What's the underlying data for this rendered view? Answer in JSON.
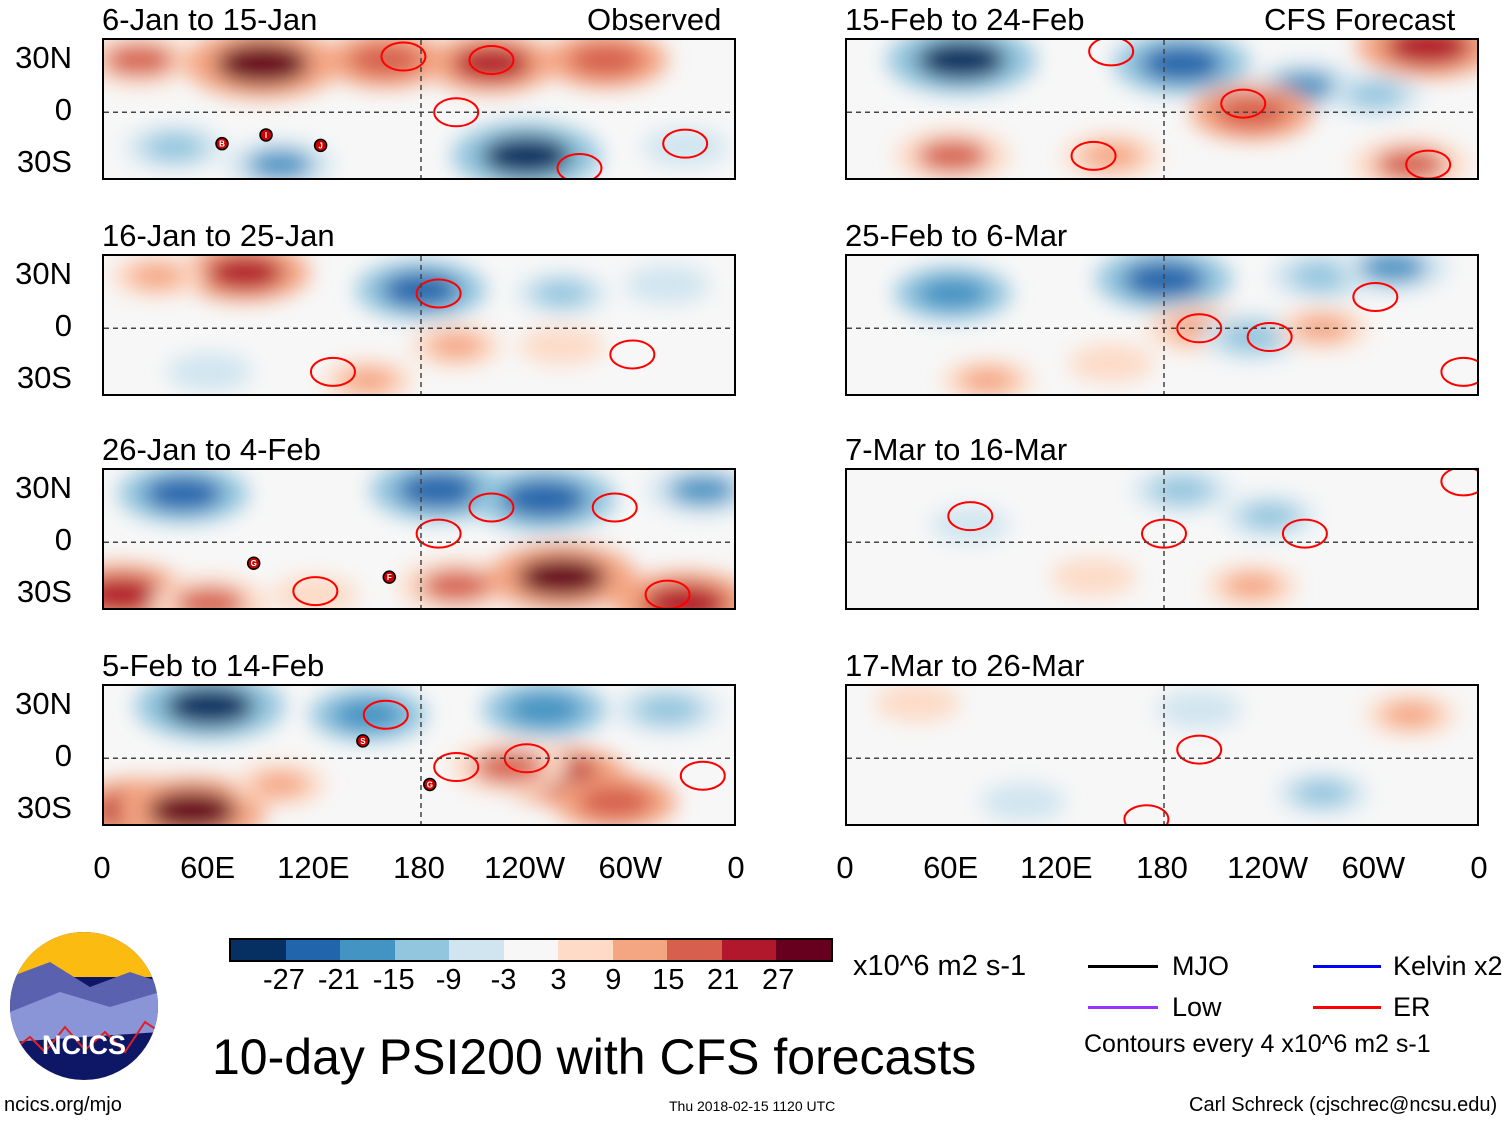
{
  "header": {
    "observed_label": "Observed",
    "forecast_label": "CFS Forecast"
  },
  "chart_data": {
    "type": "heatmap",
    "title": "10-day PSI200 with CFS forecasts",
    "units": "x10^6 m2 s-1",
    "contour_note": "Contours every 4 x10^6 m2 s-1",
    "lat_ticks": [
      "30N",
      "0",
      "30S"
    ],
    "lon_ticks": [
      "0",
      "60E",
      "120E",
      "180",
      "120W",
      "60W",
      "0"
    ],
    "lon_tick_values": [
      0,
      60,
      120,
      180,
      240,
      300,
      360
    ],
    "lat_range": [
      -40,
      41.5
    ],
    "colorbar": {
      "levels": [
        "-27",
        "-21",
        "-15",
        "-9",
        "-3",
        "3",
        "9",
        "15",
        "21",
        "27"
      ],
      "colors": [
        "#053061",
        "#2166ac",
        "#4393c3",
        "#92c5de",
        "#d1e5f0",
        "#f7f7f7",
        "#fddbc7",
        "#f4a582",
        "#d6604d",
        "#b2182b",
        "#67001f"
      ]
    },
    "legend": [
      {
        "label": "MJO",
        "color": "#000000"
      },
      {
        "label": "Kelvin x2",
        "color": "#0000ff"
      },
      {
        "label": "Low",
        "color": "#9933ff"
      },
      {
        "label": "ER",
        "color": "#ff0000"
      }
    ],
    "panels": [
      {
        "title": "6-Jan to 15-Jan",
        "column": "observed",
        "anoms": [
          [
            20,
            30,
            18
          ],
          [
            90,
            28,
            30
          ],
          [
            160,
            30,
            20
          ],
          [
            220,
            28,
            22
          ],
          [
            285,
            30,
            20
          ],
          [
            40,
            -20,
            -12
          ],
          [
            100,
            -30,
            -15
          ],
          [
            240,
            -25,
            -28
          ],
          [
            330,
            -20,
            -8
          ]
        ],
        "er": [
          [
            170,
            32,
            4
          ],
          [
            220,
            30,
            4
          ],
          [
            200,
            0,
            4
          ],
          [
            330,
            -18,
            4
          ],
          [
            270,
            -32,
            4
          ]
        ],
        "storms": [
          {
            "id": "B",
            "lon": 67,
            "lat": -18
          },
          {
            "id": "I",
            "lon": 92,
            "lat": -13
          },
          {
            "id": "J",
            "lon": 123,
            "lat": -19
          }
        ]
      },
      {
        "title": "16-Jan to 25-Jan",
        "column": "observed",
        "anoms": [
          [
            80,
            32,
            22
          ],
          [
            30,
            30,
            10
          ],
          [
            180,
            22,
            -22
          ],
          [
            260,
            20,
            -10
          ],
          [
            320,
            25,
            -8
          ],
          [
            60,
            -25,
            -8
          ],
          [
            200,
            -10,
            10
          ],
          [
            260,
            -10,
            8
          ],
          [
            150,
            -30,
            10
          ]
        ],
        "er": [
          [
            190,
            20,
            4
          ],
          [
            300,
            -15,
            4
          ],
          [
            130,
            -25,
            4
          ]
        ],
        "storms": []
      },
      {
        "title": "26-Jan to 4-Feb",
        "column": "observed",
        "anoms": [
          [
            45,
            28,
            -22
          ],
          [
            190,
            30,
            -24
          ],
          [
            250,
            25,
            -26
          ],
          [
            340,
            30,
            -16
          ],
          [
            10,
            -30,
            24
          ],
          [
            60,
            -35,
            18
          ],
          [
            200,
            -25,
            18
          ],
          [
            260,
            -20,
            28
          ],
          [
            330,
            -35,
            26
          ],
          [
            120,
            -30,
            8
          ]
        ],
        "er": [
          [
            220,
            20,
            4
          ],
          [
            290,
            20,
            4
          ],
          [
            120,
            -28,
            4
          ],
          [
            190,
            5,
            4
          ],
          [
            320,
            -30,
            4
          ]
        ],
        "storms": [
          {
            "id": "G",
            "lon": 85,
            "lat": -12
          },
          {
            "id": "F",
            "lon": 162,
            "lat": -20
          }
        ]
      },
      {
        "title": "5-Feb to 14-Feb",
        "column": "observed",
        "anoms": [
          [
            60,
            30,
            -28
          ],
          [
            150,
            25,
            -18
          ],
          [
            250,
            28,
            -20
          ],
          [
            320,
            28,
            -14
          ],
          [
            20,
            -30,
            26
          ],
          [
            50,
            -30,
            28
          ],
          [
            260,
            -10,
            22
          ],
          [
            230,
            -5,
            18
          ],
          [
            100,
            -15,
            10
          ],
          [
            290,
            -25,
            20
          ]
        ],
        "er": [
          [
            160,
            25,
            4
          ],
          [
            240,
            0,
            4
          ],
          [
            340,
            -10,
            4
          ],
          [
            200,
            -5,
            4
          ]
        ],
        "storms": [
          {
            "id": "S",
            "lon": 147,
            "lat": 10
          },
          {
            "id": "G",
            "lon": 185,
            "lat": -15
          }
        ]
      },
      {
        "title": "15-Feb to 24-Feb",
        "column": "forecast",
        "anoms": [
          [
            65,
            30,
            -28
          ],
          [
            190,
            28,
            -24
          ],
          [
            260,
            15,
            -15
          ],
          [
            300,
            10,
            -10
          ],
          [
            330,
            38,
            26
          ],
          [
            60,
            -25,
            18
          ],
          [
            230,
            0,
            20
          ],
          [
            150,
            -25,
            12
          ],
          [
            320,
            -30,
            18
          ]
        ],
        "er": [
          [
            225,
            5,
            4
          ],
          [
            140,
            -25,
            4
          ],
          [
            330,
            -30,
            4
          ],
          [
            150,
            35,
            4
          ]
        ],
        "storms": []
      },
      {
        "title": "25-Feb to 6-Mar",
        "column": "forecast",
        "anoms": [
          [
            60,
            20,
            -18
          ],
          [
            180,
            28,
            -24
          ],
          [
            270,
            30,
            -14
          ],
          [
            310,
            35,
            -16
          ],
          [
            200,
            0,
            14
          ],
          [
            230,
            -5,
            -14
          ],
          [
            270,
            0,
            10
          ],
          [
            80,
            -30,
            10
          ],
          [
            150,
            -20,
            8
          ]
        ],
        "er": [
          [
            200,
            0,
            4
          ],
          [
            300,
            18,
            4
          ],
          [
            350,
            -25,
            4
          ],
          [
            240,
            -5,
            4
          ]
        ],
        "storms": []
      },
      {
        "title": "7-Mar to 16-Mar",
        "column": "forecast",
        "anoms": [
          [
            190,
            30,
            -12
          ],
          [
            240,
            15,
            -10
          ],
          [
            70,
            10,
            -6
          ],
          [
            140,
            -20,
            8
          ],
          [
            230,
            -25,
            10
          ],
          [
            320,
            -30,
            6
          ]
        ],
        "er": [
          [
            180,
            5,
            4
          ],
          [
            260,
            5,
            4
          ],
          [
            350,
            35,
            4
          ],
          [
            70,
            15,
            4
          ]
        ],
        "storms": []
      },
      {
        "title": "17-Mar to 26-Mar",
        "column": "forecast",
        "anoms": [
          [
            40,
            32,
            8
          ],
          [
            200,
            28,
            -8
          ],
          [
            280,
            25,
            6
          ],
          [
            320,
            25,
            10
          ],
          [
            100,
            -25,
            -8
          ],
          [
            270,
            -20,
            -10
          ],
          [
            200,
            -15,
            6
          ]
        ],
        "er": [
          [
            200,
            5,
            4
          ],
          [
            170,
            -35,
            4
          ]
        ],
        "storms": []
      }
    ]
  },
  "footer": {
    "site": "ncics.org/mjo",
    "timestamp": "Thu 2018-02-15 1120 UTC",
    "author": "Carl Schreck (cjschrec@ncsu.edu)",
    "logo_text": "NCICS"
  }
}
